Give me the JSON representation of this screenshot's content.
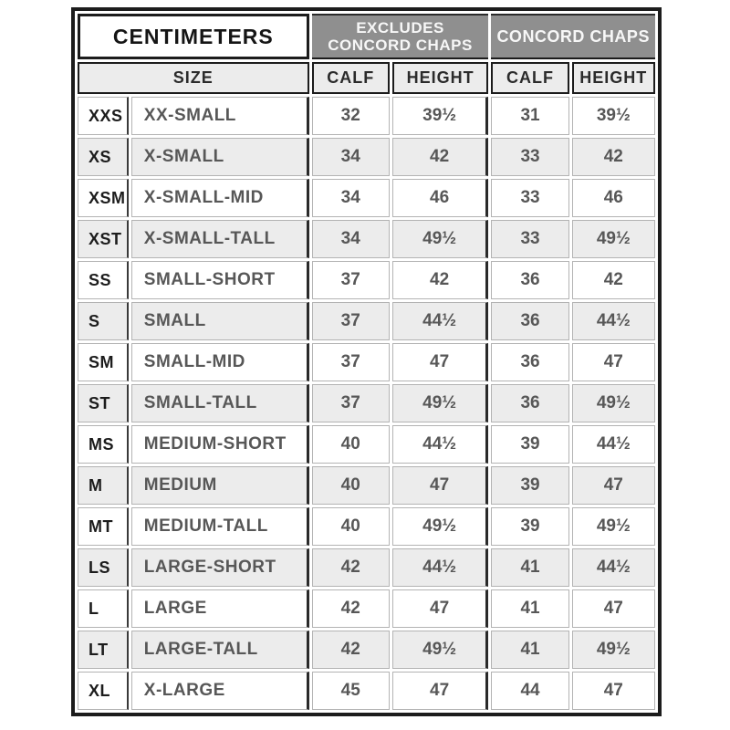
{
  "colors": {
    "group_header_bg": "#8f8f8f",
    "alt_row_bg": "#ececec",
    "border_dark": "#1c1c1c",
    "border_light": "#b3b3b3",
    "text_dark": "#1c1c1c",
    "text_gray": "#575757",
    "group_header_text": "#f7f7f7"
  },
  "chart_data": {
    "type": "table",
    "title": "CENTIMETERS",
    "unit_header": "CENTIMETERS",
    "group_headers": [
      {
        "name": "excludes-concord-chaps",
        "line1": "EXCLUDES",
        "line2": "CONCORD CHAPS"
      },
      {
        "name": "concord-chaps",
        "label": "CONCORD CHAPS"
      }
    ],
    "column_headers": {
      "size": "SIZE",
      "calf_excludes": "CALF",
      "height_excludes": "HEIGHT",
      "calf_concord": "CALF",
      "height_concord": "HEIGHT"
    },
    "rows": [
      [
        "XXS",
        "XX-SMALL",
        "32",
        "39½",
        "31",
        "39½"
      ],
      [
        "XS",
        "X-SMALL",
        "34",
        "42",
        "33",
        "42"
      ],
      [
        "XSM",
        "X-SMALL-MID",
        "34",
        "46",
        "33",
        "46"
      ],
      [
        "XST",
        "X-SMALL-TALL",
        "34",
        "49½",
        "33",
        "49½"
      ],
      [
        "SS",
        "SMALL-SHORT",
        "37",
        "42",
        "36",
        "42"
      ],
      [
        "S",
        "SMALL",
        "37",
        "44½",
        "36",
        "44½"
      ],
      [
        "SM",
        "SMALL-MID",
        "37",
        "47",
        "36",
        "47"
      ],
      [
        "ST",
        "SMALL-TALL",
        "37",
        "49½",
        "36",
        "49½"
      ],
      [
        "MS",
        "MEDIUM-SHORT",
        "40",
        "44½",
        "39",
        "44½"
      ],
      [
        "M",
        "MEDIUM",
        "40",
        "47",
        "39",
        "47"
      ],
      [
        "MT",
        "MEDIUM-TALL",
        "40",
        "49½",
        "39",
        "49½"
      ],
      [
        "LS",
        "LARGE-SHORT",
        "42",
        "44½",
        "41",
        "44½"
      ],
      [
        "L",
        "LARGE",
        "42",
        "47",
        "41",
        "47"
      ],
      [
        "LT",
        "LARGE-TALL",
        "42",
        "49½",
        "41",
        "49½"
      ],
      [
        "XL",
        "X-LARGE",
        "45",
        "47",
        "44",
        "47"
      ]
    ]
  }
}
